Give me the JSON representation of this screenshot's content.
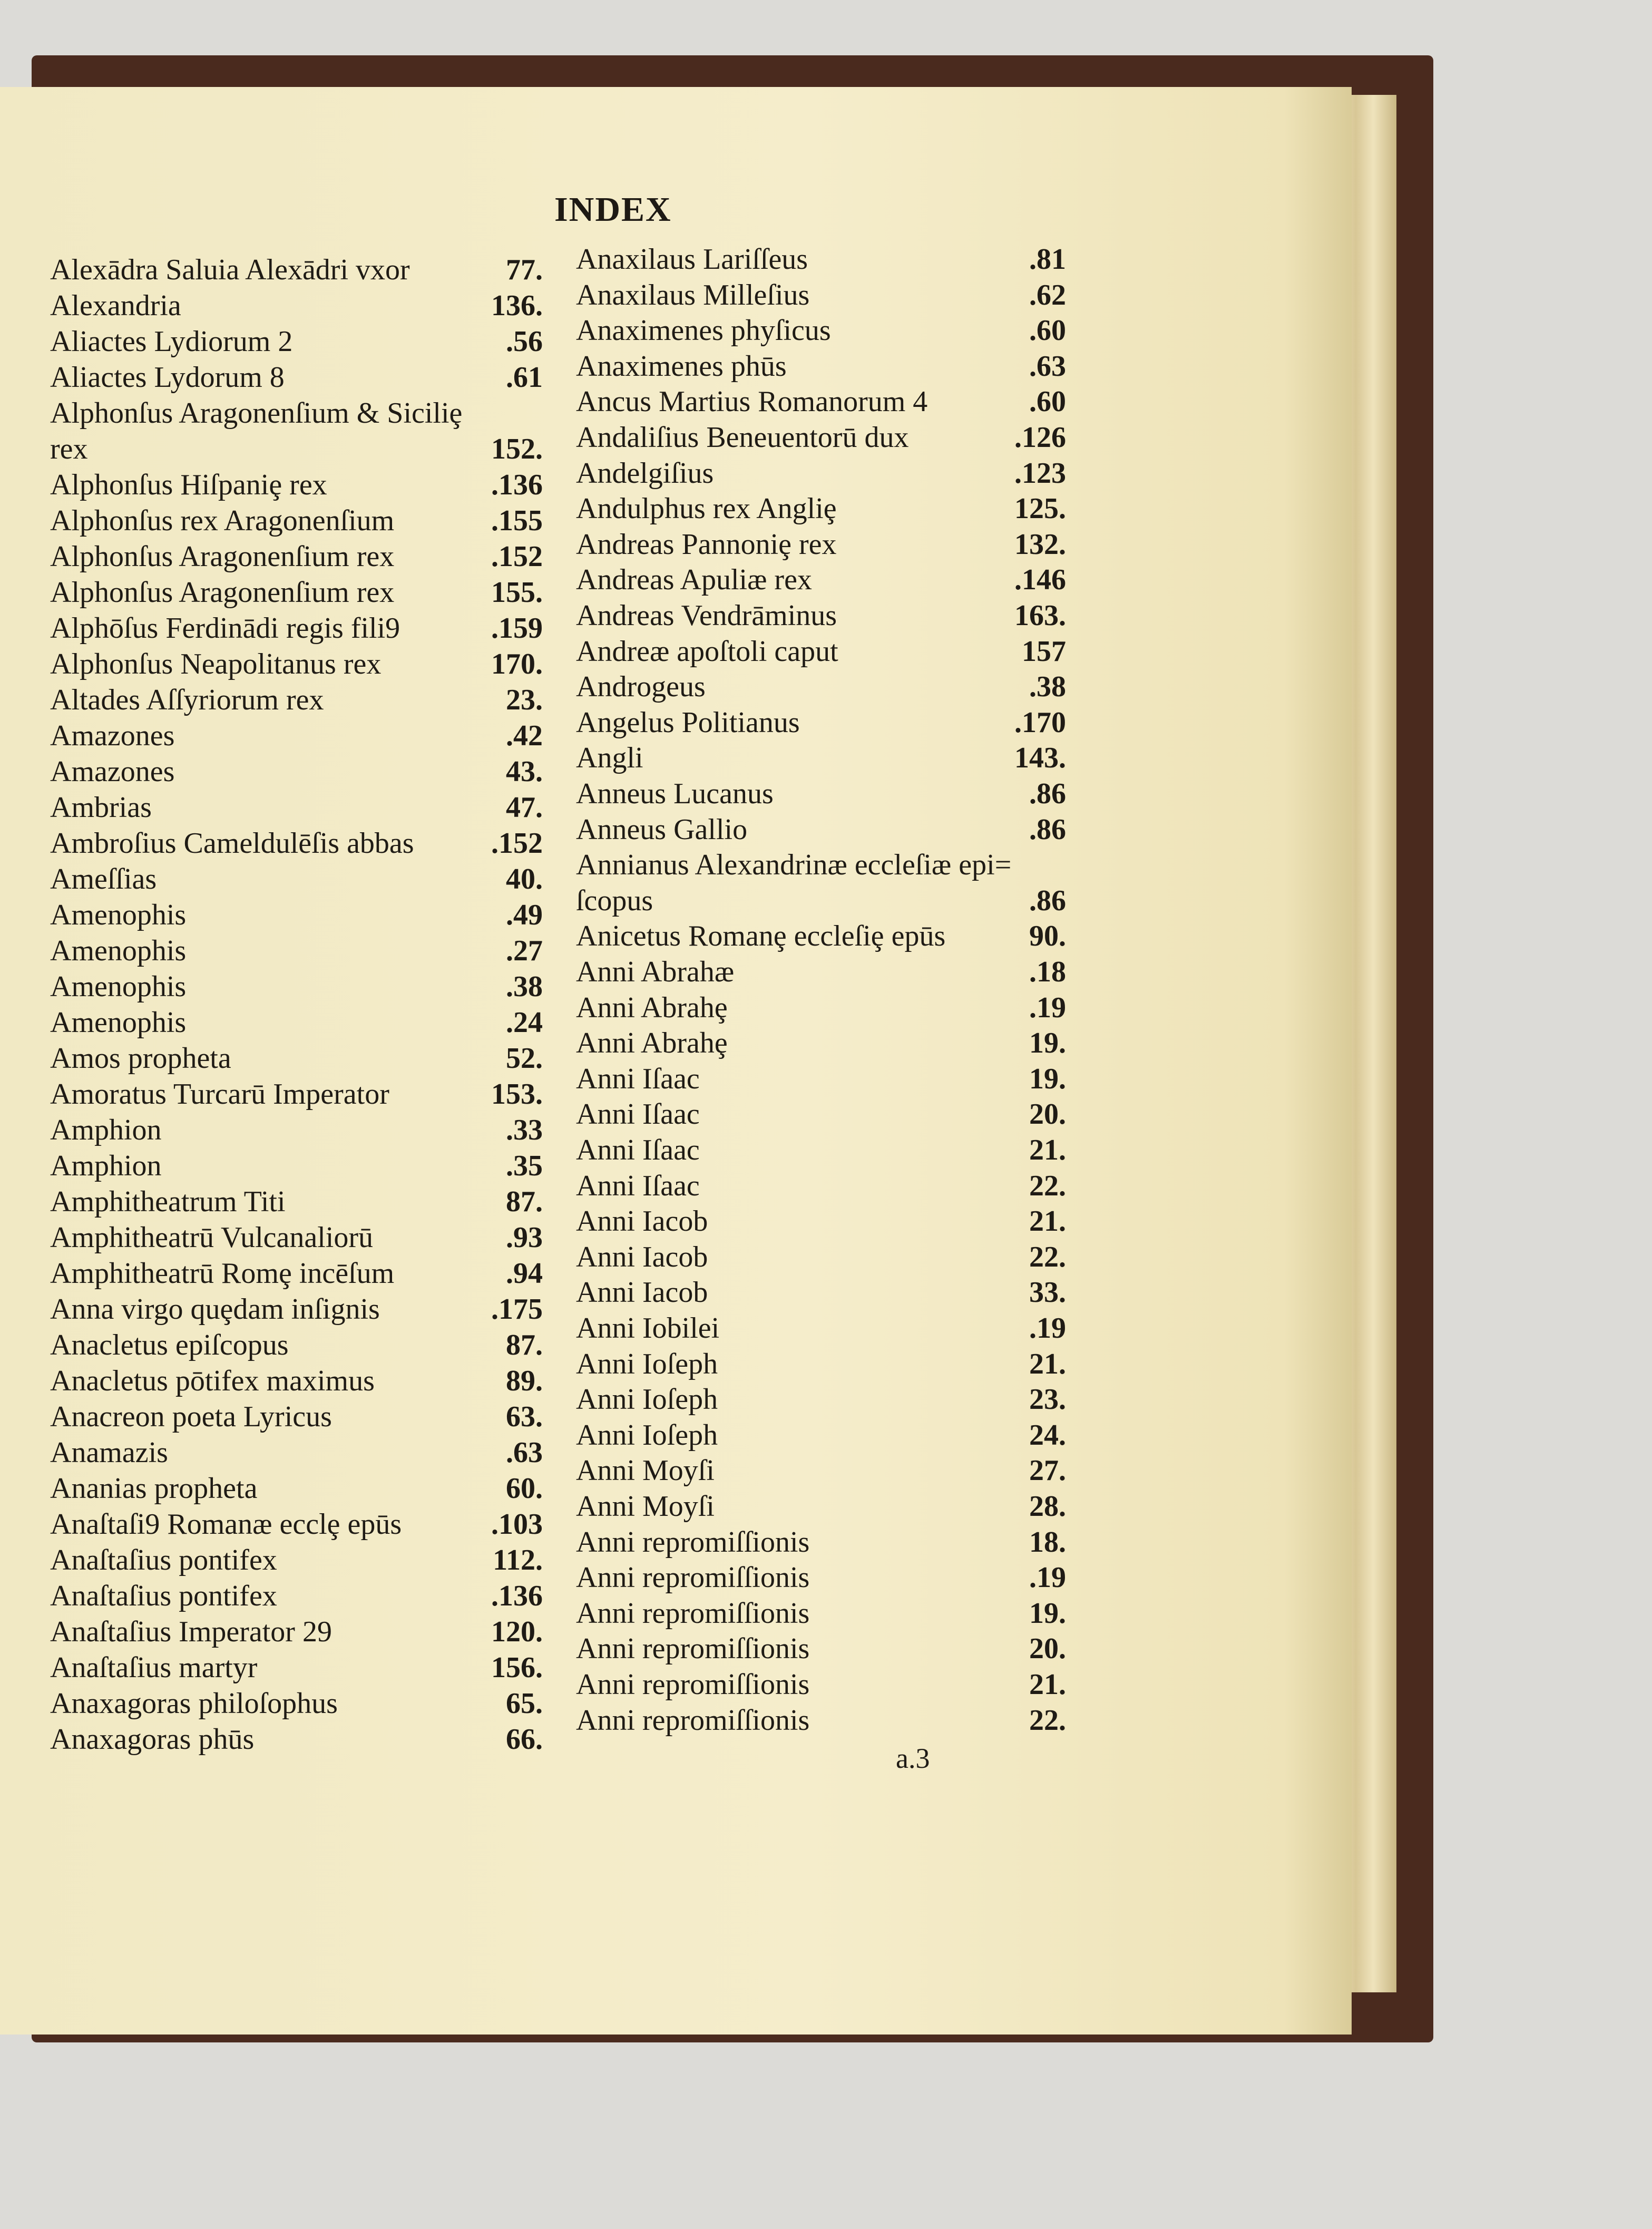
{
  "title": "INDEX",
  "folio": "a.3",
  "left": [
    [
      "Alexādra Saluia Alexādri vxor",
      "77."
    ],
    [
      "Alexandria",
      "136."
    ],
    [
      "Aliactes Lydiorum 2",
      ".56"
    ],
    [
      "Aliactes Lydorum 8",
      ".61"
    ],
    [
      "Alphonſus Aragonenſium & Siciliȩ",
      ""
    ],
    [
      "rex",
      "152."
    ],
    [
      "Alphonſus Hiſpaniȩ rex",
      ".136"
    ],
    [
      "Alphonſus rex Aragonenſium",
      ".155"
    ],
    [
      "Alphonſus Aragonenſium rex",
      ".152"
    ],
    [
      "Alphonſus Aragonenſium rex",
      "155."
    ],
    [
      "Alphōſus Ferdinādi regis fili9",
      ".159"
    ],
    [
      "Alphonſus Neapolitanus rex",
      "170."
    ],
    [
      "Altades Aſſyriorum rex",
      "23."
    ],
    [
      "Amazones",
      ".42"
    ],
    [
      "Amazones",
      "43."
    ],
    [
      "Ambrias",
      "47."
    ],
    [
      "Ambroſius Cameldulēſis abbas",
      ".152"
    ],
    [
      "Ameſſias",
      "40."
    ],
    [
      "Amenophis",
      ".49"
    ],
    [
      "Amenophis",
      ".27"
    ],
    [
      "Amenophis",
      ".38"
    ],
    [
      "Amenophis",
      ".24"
    ],
    [
      "Amos propheta",
      "52."
    ],
    [
      "Amoratus Turcarū Imperator",
      "153."
    ],
    [
      "Amphion",
      ".33"
    ],
    [
      "Amphion",
      ".35"
    ],
    [
      "Amphitheatrum Titi",
      "87."
    ],
    [
      "Amphitheatrū Vulcanaliorū",
      ".93"
    ],
    [
      "Amphitheatrū Romȩ incēſum",
      ".94"
    ],
    [
      "Anna virgo quȩdam inſignis",
      ".175"
    ],
    [
      "Anacletus epiſcopus",
      "87."
    ],
    [
      "Anacletus pōtifex maximus",
      "89."
    ],
    [
      "Anacreon poeta Lyricus",
      "63."
    ],
    [
      "Anamazis",
      ".63"
    ],
    [
      "Ananias propheta",
      "60."
    ],
    [
      "Anaſtaſi9 Romanæ ecclȩ epūs",
      ".103"
    ],
    [
      "Anaſtaſius pontifex",
      "112."
    ],
    [
      "Anaſtaſius pontifex",
      ".136"
    ],
    [
      "Anaſtaſius Imperator 29",
      "120."
    ],
    [
      "Anaſtaſius martyr",
      "156."
    ],
    [
      "Anaxagoras philoſophus",
      "65."
    ],
    [
      "Anaxagoras phūs",
      "66."
    ]
  ],
  "right": [
    [
      "Anaxilaus Lariſſeus",
      ".81"
    ],
    [
      "Anaxilaus Milleſius",
      ".62"
    ],
    [
      "Anaximenes phyſicus",
      ".60"
    ],
    [
      "Anaximenes phūs",
      ".63"
    ],
    [
      "Ancus Martius Romanorum 4",
      ".60"
    ],
    [
      "Andaliſius Beneuentorū dux",
      ".126"
    ],
    [
      "Andelgiſius",
      ".123"
    ],
    [
      "Andulphus rex Angliȩ",
      "125."
    ],
    [
      "Andreas Pannoniȩ rex",
      "132."
    ],
    [
      "Andreas Apuliæ rex",
      ".146"
    ],
    [
      "Andreas Vendrāminus",
      "163."
    ],
    [
      "Andreæ apoſtoli caput",
      "157"
    ],
    [
      "Androgeus",
      ".38"
    ],
    [
      "Angelus Politianus",
      ".170"
    ],
    [
      "Angli",
      "143."
    ],
    [
      "Anneus Lucanus",
      ".86"
    ],
    [
      "Anneus Gallio",
      ".86"
    ],
    [
      "Annianus Alexandrinæ eccleſiæ epi=",
      ""
    ],
    [
      "ſcopus",
      ".86"
    ],
    [
      "Anicetus Romanȩ eccleſiȩ epūs",
      "90."
    ],
    [
      "Anni Abrahæ",
      ".18"
    ],
    [
      "Anni Abrahȩ",
      ".19"
    ],
    [
      "Anni Abrahȩ",
      "19."
    ],
    [
      "Anni Iſaac",
      "19."
    ],
    [
      "Anni Iſaac",
      "20."
    ],
    [
      "Anni Iſaac",
      "21."
    ],
    [
      "Anni Iſaac",
      "22."
    ],
    [
      "Anni Iacob",
      "21."
    ],
    [
      "Anni Iacob",
      "22."
    ],
    [
      "Anni Iacob",
      "33."
    ],
    [
      "Anni Iobilei",
      ".19"
    ],
    [
      "Anni Ioſeph",
      "21."
    ],
    [
      "Anni Ioſeph",
      "23."
    ],
    [
      "Anni Ioſeph",
      "24."
    ],
    [
      "Anni Moyſi",
      "27."
    ],
    [
      "Anni Moyſi",
      "28."
    ],
    [
      "Anni repromiſſionis",
      "18."
    ],
    [
      "Anni repromiſſionis",
      ".19"
    ],
    [
      "Anni repromiſſionis",
      "19."
    ],
    [
      "Anni repromiſſionis",
      "20."
    ],
    [
      "Anni repromiſſionis",
      "21."
    ],
    [
      "Anni repromiſſionis",
      "22."
    ]
  ]
}
